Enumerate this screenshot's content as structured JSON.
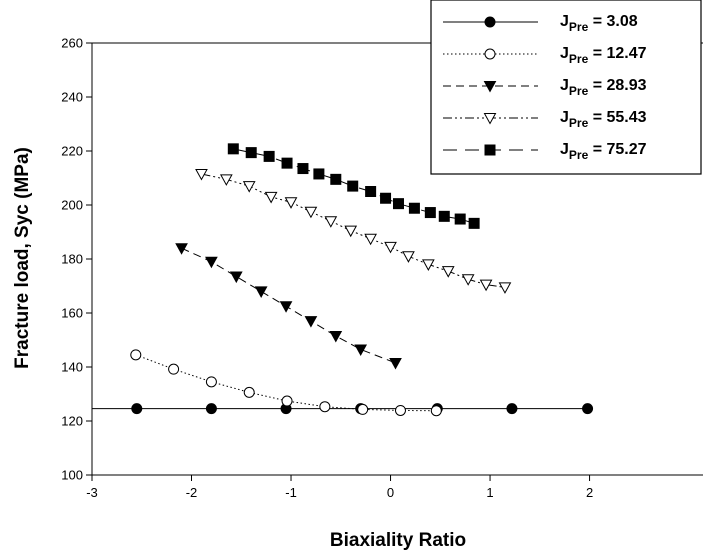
{
  "chart_data": {
    "type": "line",
    "xlabel": "Biaxiality Ratio",
    "ylabel": "Fracture load, Syc (MPa)",
    "xlim": [
      -3,
      2
    ],
    "ylim": [
      100,
      260
    ],
    "xticks": [
      -3,
      -2,
      -1,
      0,
      1,
      2
    ],
    "yticks": [
      100,
      120,
      140,
      160,
      180,
      200,
      220,
      240,
      260
    ],
    "xtick_labels": [
      "-3",
      "-2",
      "-1",
      "0",
      "1",
      "2"
    ],
    "ytick_labels": [
      "100",
      "120",
      "140",
      "160",
      "180",
      "200",
      "220",
      "240",
      "260"
    ],
    "legend_position": "top-right",
    "grid": false,
    "series": [
      {
        "name": "J_Pre = 3.08",
        "label_main": "J",
        "label_sub": "Pre",
        "label_tail": " = 3.08",
        "marker": "filled-circle",
        "line_style": "solid",
        "x": [
          -3.2,
          -2.55,
          -1.8,
          -1.05,
          -0.3,
          0.47,
          1.22,
          1.98
        ],
        "y": [
          124.6,
          124.6,
          124.6,
          124.6,
          124.6,
          124.6,
          124.6,
          124.6
        ]
      },
      {
        "name": "J_Pre = 12.47",
        "label_main": "J",
        "label_sub": "Pre",
        "label_tail": " = 12.47",
        "marker": "open-circle",
        "line_style": "dotted",
        "x": [
          -2.56,
          -2.18,
          -1.8,
          -1.42,
          -1.04,
          -0.66,
          -0.28,
          0.1,
          0.46
        ],
        "y": [
          144.5,
          139.2,
          134.5,
          130.6,
          127.4,
          125.3,
          124.3,
          123.9,
          123.8
        ]
      },
      {
        "name": "J_Pre = 28.93",
        "label_main": "J",
        "label_sub": "Pre",
        "label_tail": " = 28.93",
        "marker": "filled-triangle-down",
        "line_style": "dashed",
        "x": [
          -2.1,
          -1.8,
          -1.55,
          -1.3,
          -1.05,
          -0.8,
          -0.55,
          -0.3,
          0.05
        ],
        "y": [
          184.0,
          179.0,
          173.5,
          168.0,
          162.5,
          157.0,
          151.5,
          146.5,
          141.5
        ]
      },
      {
        "name": "J_Pre = 55.43",
        "label_main": "J",
        "label_sub": "Pre",
        "label_tail": " = 55.43",
        "marker": "open-triangle-down",
        "line_style": "dash-dot-dot",
        "x": [
          -1.9,
          -1.65,
          -1.42,
          -1.2,
          -1.0,
          -0.8,
          -0.6,
          -0.4,
          -0.2,
          0.0,
          0.18,
          0.38,
          0.58,
          0.78,
          0.96,
          1.15
        ],
        "y": [
          211.5,
          209.5,
          207.0,
          203.0,
          201.0,
          197.5,
          194.0,
          190.5,
          187.5,
          184.5,
          181.0,
          178.0,
          175.5,
          172.5,
          170.5,
          169.5
        ]
      },
      {
        "name": "J_Pre = 75.27",
        "label_main": "J",
        "label_sub": "Pre",
        "label_tail": " = 75.27",
        "marker": "filled-square",
        "line_style": "long-dash",
        "x": [
          -1.58,
          -1.4,
          -1.22,
          -1.04,
          -0.88,
          -0.72,
          -0.55,
          -0.38,
          -0.2,
          -0.05,
          0.08,
          0.24,
          0.4,
          0.54,
          0.7,
          0.84
        ],
        "y": [
          220.8,
          219.4,
          218.0,
          215.5,
          213.5,
          211.5,
          209.5,
          207.0,
          205.0,
          202.5,
          200.5,
          198.8,
          197.2,
          195.8,
          194.8,
          193.2
        ]
      }
    ]
  }
}
